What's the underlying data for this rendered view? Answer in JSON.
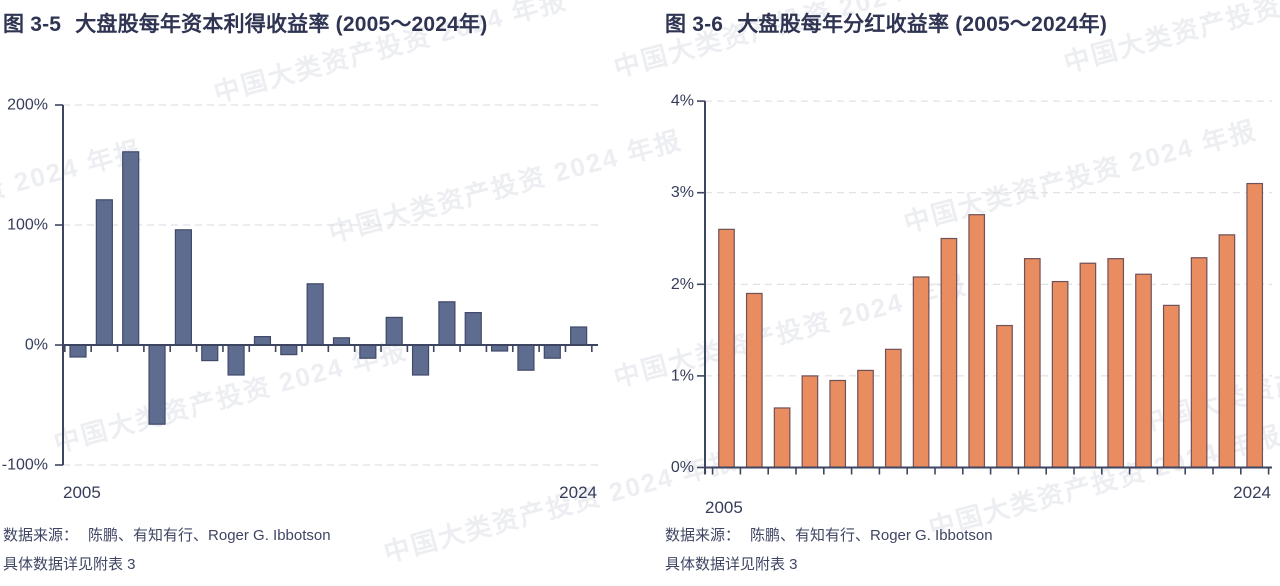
{
  "watermark": {
    "text": "中国大类资产投资 2024 年报"
  },
  "panels": [
    {
      "figure_label": "图 3-5",
      "title": "大盘股每年资本利得收益率 (2005～2024年)",
      "source_label": "数据来源：",
      "source": "陈鹏、有知有行、Roger G. Ibbotson",
      "note": "具体数据详见附表 3"
    },
    {
      "figure_label": "图 3-6",
      "title": "大盘股每年分红收益率 (2005～2024年)",
      "source_label": "数据来源：",
      "source": "陈鹏、有知有行、Roger G. Ibbotson",
      "note": "具体数据详见附表 3"
    }
  ],
  "chart_data": [
    {
      "type": "bar",
      "title": "大盘股每年资本利得收益率 (2005～2024年)",
      "categories": [
        "2005",
        "2006",
        "2007",
        "2008",
        "2009",
        "2010",
        "2011",
        "2012",
        "2013",
        "2014",
        "2015",
        "2016",
        "2017",
        "2018",
        "2019",
        "2020",
        "2021",
        "2022",
        "2023",
        "2024"
      ],
      "values": [
        -10,
        121,
        161,
        -66,
        96,
        -13,
        -25,
        7,
        -8,
        51,
        6,
        -11,
        23,
        -25,
        36,
        27,
        -5,
        -21,
        -11,
        15
      ],
      "unit": "%",
      "ylim": [
        -100,
        200
      ],
      "yticks": [
        200,
        100,
        0,
        -100
      ],
      "xtick_labels": [
        "2005",
        "2024"
      ],
      "grid": "dashed-horizontal",
      "legend": "none",
      "bar_color": "#5e6c90",
      "bar_border": "#414a68"
    },
    {
      "type": "bar",
      "title": "大盘股每年分红收益率 (2005～2024年)",
      "categories": [
        "2005",
        "2006",
        "2007",
        "2008",
        "2009",
        "2010",
        "2011",
        "2012",
        "2013",
        "2014",
        "2015",
        "2016",
        "2017",
        "2018",
        "2019",
        "2020",
        "2021",
        "2022",
        "2023",
        "2024"
      ],
      "values": [
        2.6,
        1.9,
        0.65,
        1.0,
        0.95,
        1.06,
        1.29,
        2.08,
        2.5,
        2.76,
        1.55,
        2.28,
        2.03,
        2.23,
        2.28,
        2.11,
        1.77,
        2.29,
        2.54,
        3.1
      ],
      "unit": "%",
      "ylim": [
        0,
        4
      ],
      "yticks": [
        4,
        3,
        2,
        1,
        0
      ],
      "xtick_labels": [
        "2005",
        "2024"
      ],
      "grid": "dashed-horizontal",
      "legend": "none",
      "bar_color": "#e98c5f",
      "bar_border": "#6f5158"
    }
  ]
}
